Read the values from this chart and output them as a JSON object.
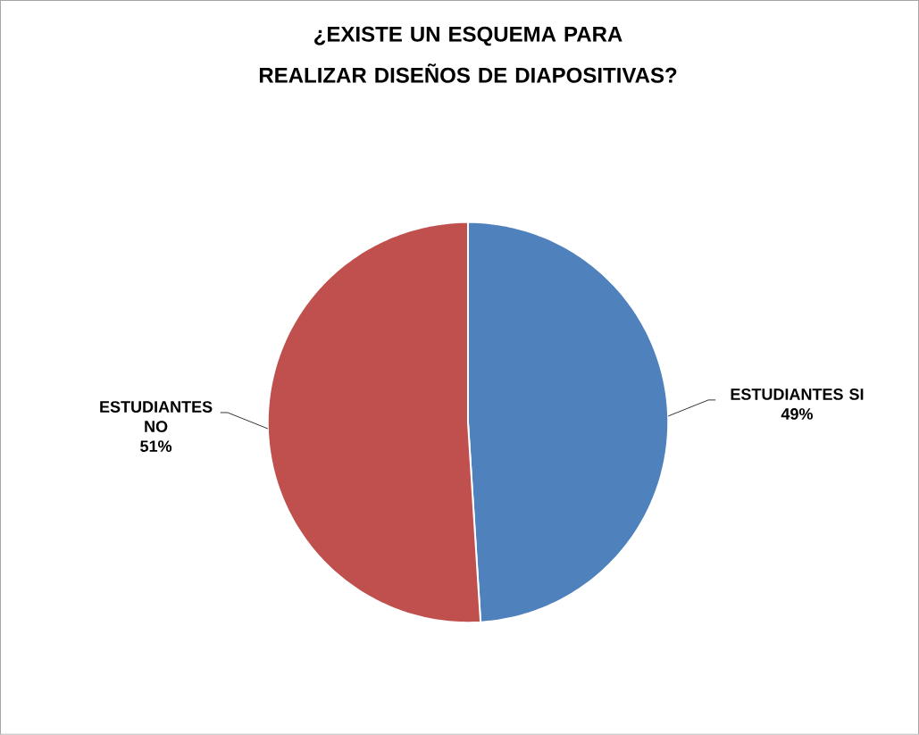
{
  "chart_data": {
    "type": "pie",
    "title": "¿EXISTE UN ESQUEMA PARA REALIZAR DISEÑOS DE DIAPOSITIVAS?",
    "categories": [
      "ESTUDIANTES SI",
      "ESTUDIANTES NO"
    ],
    "values": [
      49,
      51
    ],
    "colors": [
      "#4f81bd",
      "#c0504d"
    ],
    "value_labels": [
      "49%",
      "51%"
    ]
  }
}
